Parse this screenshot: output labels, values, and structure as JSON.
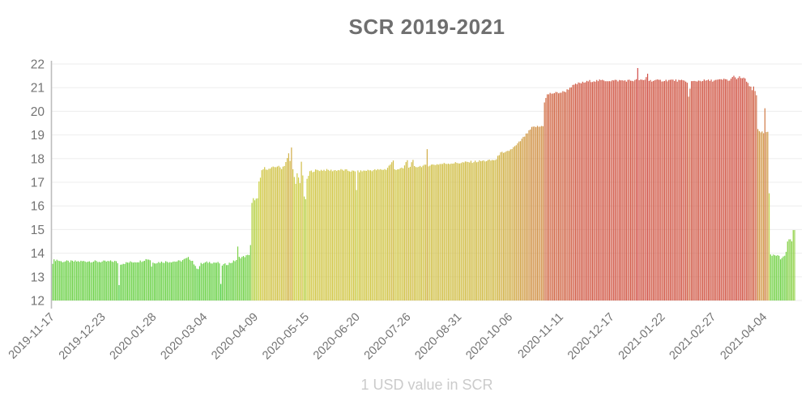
{
  "chart_data": {
    "type": "bar",
    "title": "SCR 2019-2021",
    "footer": "1 USD value in SCR",
    "xlabel": "",
    "ylabel": "",
    "ylim": [
      12,
      22
    ],
    "y_ticks": [
      12,
      13,
      14,
      15,
      16,
      17,
      18,
      19,
      20,
      21,
      22
    ],
    "grid": "horizontal",
    "legend": "none",
    "start_date": "2019-11-17",
    "tick_interval_days": 36,
    "n_days": 526,
    "x_tick_labels": [
      "2019-11-17",
      "2019-12-23",
      "2020-01-28",
      "2020-03-04",
      "2020-04-09",
      "2020-05-15",
      "2020-06-20",
      "2020-07-26",
      "2020-08-31",
      "2020-10-06",
      "2020-11-11",
      "2020-12-17",
      "2021-01-22",
      "2021-02-27",
      "2021-04-04"
    ],
    "series_anchors": [
      [
        0,
        13.6
      ],
      [
        1,
        13.7
      ],
      [
        3,
        13.72
      ],
      [
        6,
        13.65
      ],
      [
        15,
        13.65
      ],
      [
        25,
        13.66
      ],
      [
        35,
        13.64
      ],
      [
        44,
        13.66
      ],
      [
        46,
        13.6
      ],
      [
        47,
        12.65
      ],
      [
        48,
        13.55
      ],
      [
        55,
        13.62
      ],
      [
        62,
        13.66
      ],
      [
        67,
        13.76
      ],
      [
        69,
        13.72
      ],
      [
        70,
        13.45
      ],
      [
        71,
        13.6
      ],
      [
        80,
        13.64
      ],
      [
        90,
        13.66
      ],
      [
        96,
        13.8
      ],
      [
        99,
        13.68
      ],
      [
        101,
        13.42
      ],
      [
        103,
        13.36
      ],
      [
        105,
        13.55
      ],
      [
        110,
        13.62
      ],
      [
        116,
        13.6
      ],
      [
        118,
        13.58
      ],
      [
        119,
        12.65
      ],
      [
        120,
        13.5
      ],
      [
        124,
        13.55
      ],
      [
        128,
        13.65
      ],
      [
        130,
        13.72
      ],
      [
        131,
        14.25
      ],
      [
        132,
        13.82
      ],
      [
        135,
        13.85
      ],
      [
        138,
        13.9
      ],
      [
        139,
        13.95
      ],
      [
        140,
        14.35
      ],
      [
        141,
        16.1
      ],
      [
        142,
        16.3
      ],
      [
        143,
        16.2
      ],
      [
        144,
        16.35
      ],
      [
        145,
        16.3
      ],
      [
        146,
        17.0
      ],
      [
        147,
        17.15
      ],
      [
        148,
        17.5
      ],
      [
        150,
        17.6
      ],
      [
        153,
        17.55
      ],
      [
        156,
        17.62
      ],
      [
        159,
        17.68
      ],
      [
        162,
        17.6
      ],
      [
        164,
        17.72
      ],
      [
        166,
        18.0
      ],
      [
        167,
        18.2
      ],
      [
        168,
        17.9
      ],
      [
        169,
        18.45
      ],
      [
        170,
        17.6
      ],
      [
        171,
        17.2
      ],
      [
        172,
        16.9
      ],
      [
        173,
        17.35
      ],
      [
        174,
        17.2
      ],
      [
        175,
        16.95
      ],
      [
        176,
        17.9
      ],
      [
        177,
        17.3
      ],
      [
        178,
        16.35
      ],
      [
        179,
        16.3
      ],
      [
        180,
        17.1
      ],
      [
        182,
        17.45
      ],
      [
        186,
        17.5
      ],
      [
        192,
        17.52
      ],
      [
        198,
        17.5
      ],
      [
        204,
        17.52
      ],
      [
        208,
        17.5
      ],
      [
        214,
        17.45
      ],
      [
        215,
        16.7
      ],
      [
        216,
        17.45
      ],
      [
        222,
        17.5
      ],
      [
        230,
        17.52
      ],
      [
        236,
        17.55
      ],
      [
        241,
        17.9
      ],
      [
        242,
        17.55
      ],
      [
        248,
        17.58
      ],
      [
        251,
        17.95
      ],
      [
        252,
        17.6
      ],
      [
        255,
        17.9
      ],
      [
        256,
        17.65
      ],
      [
        260,
        17.68
      ],
      [
        264,
        17.7
      ],
      [
        265,
        18.4
      ],
      [
        266,
        17.72
      ],
      [
        272,
        17.76
      ],
      [
        280,
        17.8
      ],
      [
        288,
        17.82
      ],
      [
        296,
        17.86
      ],
      [
        304,
        17.9
      ],
      [
        310,
        17.92
      ],
      [
        314,
        17.96
      ],
      [
        317,
        18.3
      ],
      [
        319,
        18.2
      ],
      [
        322,
        18.3
      ],
      [
        325,
        18.42
      ],
      [
        328,
        18.55
      ],
      [
        331,
        18.75
      ],
      [
        334,
        18.95
      ],
      [
        337,
        19.15
      ],
      [
        339,
        19.3
      ],
      [
        342,
        19.35
      ],
      [
        345,
        19.35
      ],
      [
        347,
        19.4
      ],
      [
        348,
        20.4
      ],
      [
        349,
        20.55
      ],
      [
        350,
        20.7
      ],
      [
        352,
        20.75
      ],
      [
        356,
        20.78
      ],
      [
        360,
        20.8
      ],
      [
        363,
        20.85
      ],
      [
        365,
        20.95
      ],
      [
        367,
        21.05
      ],
      [
        369,
        21.1
      ],
      [
        372,
        21.18
      ],
      [
        376,
        21.22
      ],
      [
        380,
        21.28
      ],
      [
        388,
        21.3
      ],
      [
        396,
        21.3
      ],
      [
        404,
        21.3
      ],
      [
        412,
        21.3
      ],
      [
        413,
        21.32
      ],
      [
        414,
        21.85
      ],
      [
        415,
        21.3
      ],
      [
        419,
        21.32
      ],
      [
        421,
        21.6
      ],
      [
        422,
        21.3
      ],
      [
        430,
        21.3
      ],
      [
        438,
        21.32
      ],
      [
        446,
        21.28
      ],
      [
        449,
        21.25
      ],
      [
        450,
        20.6
      ],
      [
        451,
        20.95
      ],
      [
        452,
        21.25
      ],
      [
        458,
        21.3
      ],
      [
        466,
        21.3
      ],
      [
        472,
        21.32
      ],
      [
        476,
        21.35
      ],
      [
        479,
        21.3
      ],
      [
        481,
        21.42
      ],
      [
        482,
        21.55
      ],
      [
        484,
        21.32
      ],
      [
        486,
        21.45
      ],
      [
        488,
        21.4
      ],
      [
        490,
        21.36
      ],
      [
        492,
        21.2
      ],
      [
        493,
        21.05
      ],
      [
        494,
        21.0
      ],
      [
        495,
        20.9
      ],
      [
        496,
        21.0
      ],
      [
        497,
        20.85
      ],
      [
        498,
        20.7
      ],
      [
        499,
        19.2
      ],
      [
        500,
        19.15
      ],
      [
        501,
        19.1
      ],
      [
        502,
        19.15
      ],
      [
        503,
        19.1
      ],
      [
        504,
        20.15
      ],
      [
        505,
        19.15
      ],
      [
        506,
        19.1
      ],
      [
        507,
        16.5
      ],
      [
        508,
        13.9
      ],
      [
        511,
        13.9
      ],
      [
        513,
        13.88
      ],
      [
        514,
        13.85
      ],
      [
        515,
        13.75
      ],
      [
        516,
        13.8
      ],
      [
        517,
        13.9
      ],
      [
        518,
        13.92
      ],
      [
        519,
        14.1
      ],
      [
        520,
        14.5
      ],
      [
        521,
        14.55
      ],
      [
        522,
        14.6
      ],
      [
        523,
        14.5
      ],
      [
        524,
        14.95
      ],
      [
        525,
        15.0
      ]
    ],
    "jitter_amplitude": 0.1,
    "color_scale": {
      "type": "value-gradient-green-yellow-red",
      "v_min": 12.4,
      "v_max": 21.9,
      "hue_low_value": 120,
      "hue_high_value": 0,
      "saturation": 60,
      "lightness": 55
    },
    "colors": {
      "title": "#6f6f6f",
      "tick_labels": "#737373",
      "footer": "#cbcbcb",
      "axis_line": "#bdbdbd",
      "gridline": "#ededed",
      "background": "#ffffff",
      "sample_green": "#76c93f",
      "sample_yellow": "#d0c944",
      "sample_orange": "#d99c47",
      "sample_red": "#d8604e"
    }
  }
}
